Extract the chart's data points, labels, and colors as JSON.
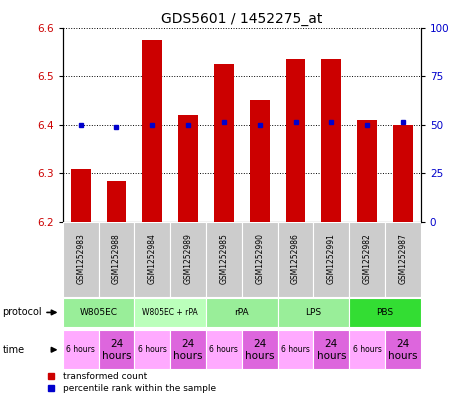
{
  "title": "GDS5601 / 1452275_at",
  "samples": [
    "GSM1252983",
    "GSM1252988",
    "GSM1252984",
    "GSM1252989",
    "GSM1252985",
    "GSM1252990",
    "GSM1252986",
    "GSM1252991",
    "GSM1252982",
    "GSM1252987"
  ],
  "red_values": [
    6.31,
    6.285,
    6.575,
    6.42,
    6.525,
    6.45,
    6.535,
    6.535,
    6.41,
    6.4
  ],
  "blue_values": [
    6.4,
    6.395,
    6.4,
    6.4,
    6.405,
    6.4,
    6.405,
    6.405,
    6.4,
    6.405
  ],
  "ylim": [
    6.2,
    6.6
  ],
  "yticks_left": [
    6.2,
    6.3,
    6.4,
    6.5,
    6.6
  ],
  "yticks_right": [
    0,
    25,
    50,
    75,
    100
  ],
  "protocols_info": [
    {
      "label": "W805EC",
      "start": 0,
      "end": 2,
      "color": "#99ee99"
    },
    {
      "label": "W805EC + rPA",
      "start": 2,
      "end": 4,
      "color": "#bbffbb"
    },
    {
      "label": "rPA",
      "start": 4,
      "end": 6,
      "color": "#99ee99"
    },
    {
      "label": "LPS",
      "start": 6,
      "end": 8,
      "color": "#99ee99"
    },
    {
      "label": "PBS",
      "start": 8,
      "end": 10,
      "color": "#33dd33"
    }
  ],
  "time_labels": [
    "6 hours",
    "24\nhours",
    "6 hours",
    "24\nhours",
    "6 hours",
    "24\nhours",
    "6 hours",
    "24\nhours",
    "6 hours",
    "24\nhours"
  ],
  "time_colors": [
    "#ffaaff",
    "#dd66dd",
    "#ffaaff",
    "#dd66dd",
    "#ffaaff",
    "#dd66dd",
    "#ffaaff",
    "#dd66dd",
    "#ffaaff",
    "#dd66dd"
  ],
  "bar_color": "#cc0000",
  "dot_color": "#0000cc",
  "label_color_left": "#cc0000",
  "label_color_right": "#0000cc",
  "sample_bg_color": "#cccccc",
  "bg_color": "#ffffff"
}
